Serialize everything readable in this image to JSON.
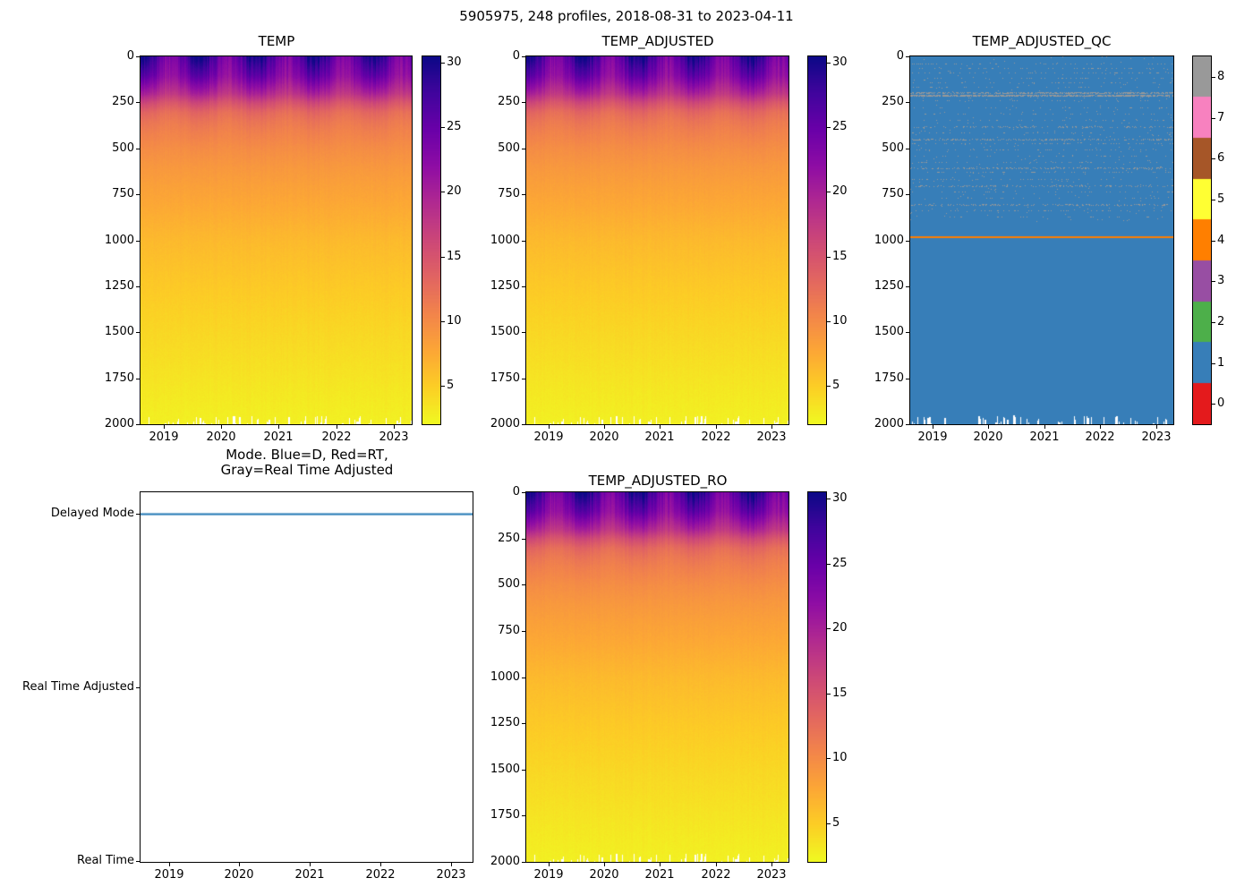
{
  "figure": {
    "title": "5905975, 248 profiles, 2018-08-31 to 2023-04-11",
    "platform_id": "5905975",
    "n_profiles": 248,
    "date_start": "2018-08-31",
    "date_end": "2023-04-11",
    "background": "#ffffff"
  },
  "chart_data": [
    {
      "type": "heatmap",
      "title": "TEMP",
      "x_ticks": [
        "2019",
        "2020",
        "2021",
        "2022",
        "2023"
      ],
      "x_range_years": [
        2018.6,
        2023.31
      ],
      "y_ticks": [
        "0",
        "250",
        "500",
        "750",
        "1000",
        "1250",
        "1500",
        "1750",
        "2000"
      ],
      "y_range": [
        0,
        2000
      ],
      "n_profiles": 248,
      "colorbar": {
        "colormap": "plasma_r",
        "vmin": 2.0,
        "vmax": 30.5,
        "ticks": [
          "5",
          "10",
          "15",
          "20",
          "25",
          "30"
        ],
        "stops": [
          "#0d0887",
          "#41049d",
          "#6a00a8",
          "#8f0da4",
          "#b12a90",
          "#cc4778",
          "#e16462",
          "#f2844b",
          "#fca636",
          "#fcce25",
          "#f0f921"
        ]
      },
      "mean_profile": {
        "depth_dbar": [
          0,
          100,
          200,
          250,
          300,
          350,
          400,
          500,
          600,
          700,
          800,
          1000,
          1200,
          1400,
          1600,
          1800,
          2000
        ],
        "temp_c": [
          27,
          24,
          19,
          15.5,
          13,
          11.8,
          11,
          9.8,
          8.9,
          8.2,
          7.6,
          6.3,
          5.4,
          4.6,
          3.9,
          3.2,
          2.6
        ]
      },
      "surface_seasonal_amplitude_c": 3.5
    },
    {
      "type": "heatmap",
      "title": "TEMP_ADJUSTED",
      "x_ticks": [
        "2019",
        "2020",
        "2021",
        "2022",
        "2023"
      ],
      "x_range_years": [
        2018.6,
        2023.31
      ],
      "y_ticks": [
        "0",
        "250",
        "500",
        "750",
        "1000",
        "1250",
        "1500",
        "1750",
        "2000"
      ],
      "y_range": [
        0,
        2000
      ],
      "n_profiles": 248,
      "colorbar": {
        "colormap": "plasma_r",
        "vmin": 2.0,
        "vmax": 30.5,
        "ticks": [
          "5",
          "10",
          "15",
          "20",
          "25",
          "30"
        ],
        "stops": [
          "#0d0887",
          "#41049d",
          "#6a00a8",
          "#8f0da4",
          "#b12a90",
          "#cc4778",
          "#e16462",
          "#f2844b",
          "#fca636",
          "#fcce25",
          "#f0f921"
        ]
      },
      "mean_profile": {
        "depth_dbar": [
          0,
          100,
          200,
          250,
          300,
          350,
          400,
          500,
          600,
          700,
          800,
          1000,
          1200,
          1400,
          1600,
          1800,
          2000
        ],
        "temp_c": [
          27,
          24,
          19,
          15.5,
          13,
          11.8,
          11,
          9.8,
          8.9,
          8.2,
          7.6,
          6.3,
          5.4,
          4.6,
          3.9,
          3.2,
          2.6
        ]
      },
      "surface_seasonal_amplitude_c": 3.5
    },
    {
      "type": "heatmap",
      "subtype": "categorical-qc-flags",
      "title": "TEMP_ADJUSTED_QC",
      "x_ticks": [
        "2019",
        "2020",
        "2021",
        "2022",
        "2023"
      ],
      "x_range_years": [
        2018.6,
        2023.31
      ],
      "y_ticks": [
        "0",
        "250",
        "500",
        "750",
        "1000",
        "1250",
        "1500",
        "1750",
        "2000"
      ],
      "y_range": [
        0,
        2000
      ],
      "n_profiles": 248,
      "colorbar": {
        "ticks": [
          "0",
          "1",
          "2",
          "3",
          "4",
          "5",
          "6",
          "7",
          "8"
        ],
        "colors": [
          "#e41a1c",
          "#377eb8",
          "#4daf4a",
          "#984ea3",
          "#ff7f00",
          "#ffff33",
          "#a65628",
          "#f781bf",
          "#999999"
        ]
      },
      "dominant_qc": 1,
      "gray_qc": 8,
      "orange_qc": 4,
      "features": {
        "orange_line_depth_dbar": 980,
        "sparse_gray_density": 0.006,
        "sparse_gray_max_depth_dbar": 900,
        "speckle_bands": [
          {
            "d": 40,
            "r": 1,
            "den": 0.1
          },
          {
            "d": 65,
            "r": 1,
            "den": 0.14
          },
          {
            "d": 90,
            "r": 1,
            "den": 0.1
          },
          {
            "d": 115,
            "r": 1,
            "den": 0.12
          },
          {
            "d": 140,
            "r": 1,
            "den": 0.1
          },
          {
            "d": 165,
            "r": 1,
            "den": 0.1
          },
          {
            "d": 195,
            "r": 2,
            "den": 0.55
          },
          {
            "d": 210,
            "r": 2,
            "den": 0.75
          },
          {
            "d": 240,
            "r": 1,
            "den": 0.12
          },
          {
            "d": 275,
            "r": 1,
            "den": 0.1
          },
          {
            "d": 310,
            "r": 1,
            "den": 0.1
          },
          {
            "d": 345,
            "r": 1,
            "den": 0.12
          },
          {
            "d": 380,
            "r": 2,
            "den": 0.22
          },
          {
            "d": 415,
            "r": 1,
            "den": 0.12
          },
          {
            "d": 450,
            "r": 2,
            "den": 0.28
          },
          {
            "d": 470,
            "r": 1,
            "den": 0.18
          },
          {
            "d": 505,
            "r": 1,
            "den": 0.1
          },
          {
            "d": 540,
            "r": 1,
            "den": 0.1
          },
          {
            "d": 575,
            "r": 1,
            "den": 0.12
          },
          {
            "d": 605,
            "r": 2,
            "den": 0.26
          },
          {
            "d": 630,
            "r": 1,
            "den": 0.14
          },
          {
            "d": 665,
            "r": 1,
            "den": 0.1
          },
          {
            "d": 700,
            "r": 2,
            "den": 0.2
          },
          {
            "d": 735,
            "r": 1,
            "den": 0.1
          },
          {
            "d": 770,
            "r": 1,
            "den": 0.1
          },
          {
            "d": 805,
            "r": 2,
            "den": 0.26
          },
          {
            "d": 835,
            "r": 1,
            "den": 0.16
          },
          {
            "d": 870,
            "r": 1,
            "den": 0.08
          }
        ]
      }
    },
    {
      "type": "line",
      "subtype": "categorical",
      "title": "Mode. Blue=D, Red=RT,\nGray=Real Time Adjusted",
      "x_ticks": [
        "2019",
        "2020",
        "2021",
        "2022",
        "2023"
      ],
      "x_range_years": [
        2018.6,
        2023.31
      ],
      "categories": [
        "Delayed Mode",
        "Real Time Adjusted",
        "Real Time"
      ],
      "series": [
        {
          "name": "data_mode",
          "constant_value": "Delayed Mode",
          "color": "#1f77b4"
        }
      ]
    },
    {
      "type": "heatmap",
      "title": "TEMP_ADJUSTED_RO",
      "x_ticks": [
        "2019",
        "2020",
        "2021",
        "2022",
        "2023"
      ],
      "x_range_years": [
        2018.6,
        2023.31
      ],
      "y_ticks": [
        "0",
        "250",
        "500",
        "750",
        "1000",
        "1250",
        "1500",
        "1750",
        "2000"
      ],
      "y_range": [
        0,
        2000
      ],
      "n_profiles": 248,
      "colorbar": {
        "colormap": "plasma_r",
        "vmin": 2.0,
        "vmax": 30.5,
        "ticks": [
          "5",
          "10",
          "15",
          "20",
          "25",
          "30"
        ],
        "stops": [
          "#0d0887",
          "#41049d",
          "#6a00a8",
          "#8f0da4",
          "#b12a90",
          "#cc4778",
          "#e16462",
          "#f2844b",
          "#fca636",
          "#fcce25",
          "#f0f921"
        ]
      },
      "mean_profile": {
        "depth_dbar": [
          0,
          100,
          200,
          250,
          300,
          350,
          400,
          500,
          600,
          700,
          800,
          1000,
          1200,
          1400,
          1600,
          1800,
          2000
        ],
        "temp_c": [
          27,
          24,
          19,
          15.5,
          13,
          11.8,
          11,
          9.8,
          8.9,
          8.2,
          7.6,
          6.3,
          5.4,
          4.6,
          3.9,
          3.2,
          2.6
        ]
      },
      "surface_seasonal_amplitude_c": 3.5
    }
  ]
}
